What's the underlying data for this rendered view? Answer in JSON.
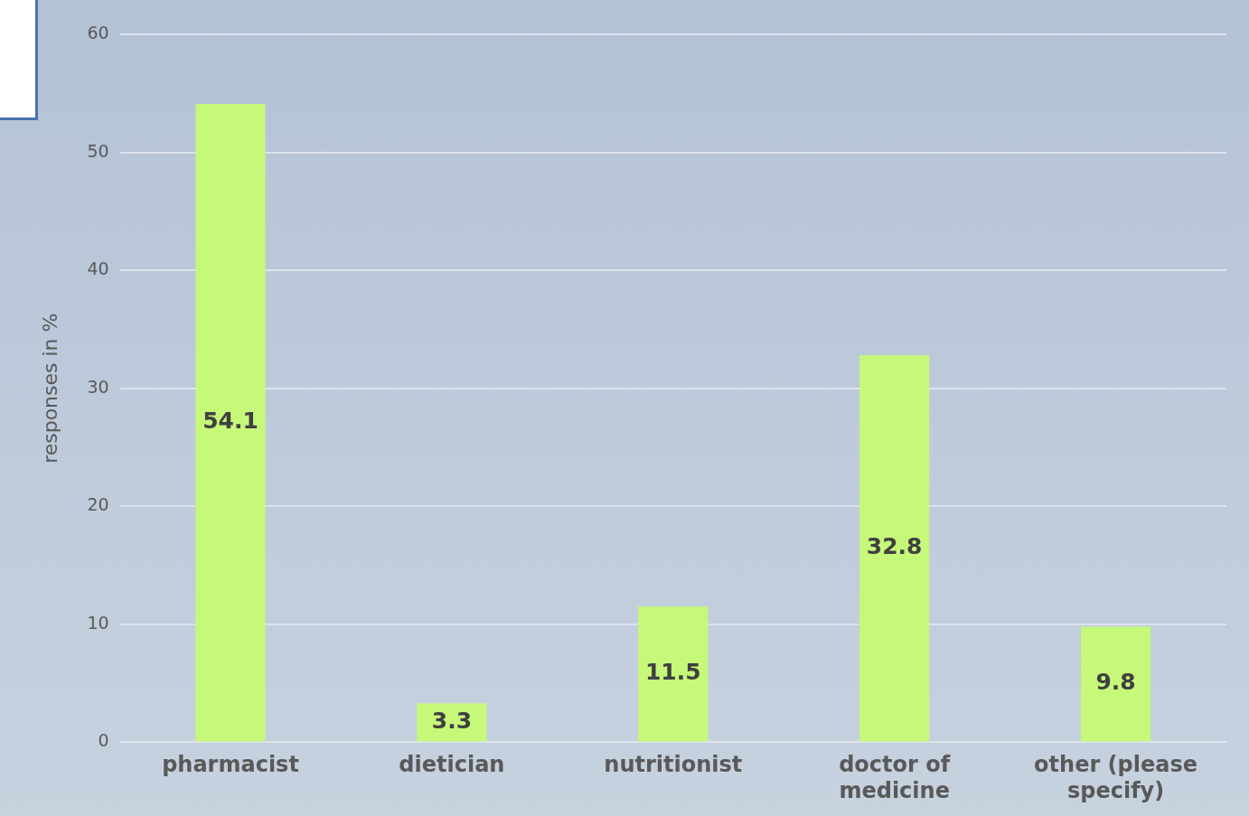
{
  "chart_data": {
    "type": "bar",
    "ylabel": "responses in %",
    "categories": [
      "pharmacist",
      "dietician",
      "nutritionist",
      "doctor of medicine",
      "other (please specify)"
    ],
    "values": [
      54.1,
      3.3,
      11.5,
      32.8,
      9.8
    ],
    "color": "#c6f87a",
    "ylim": [
      0,
      60
    ],
    "yticks": [
      0,
      10,
      20,
      30,
      40,
      50,
      60
    ],
    "grid": "y",
    "data_labels": true
  }
}
